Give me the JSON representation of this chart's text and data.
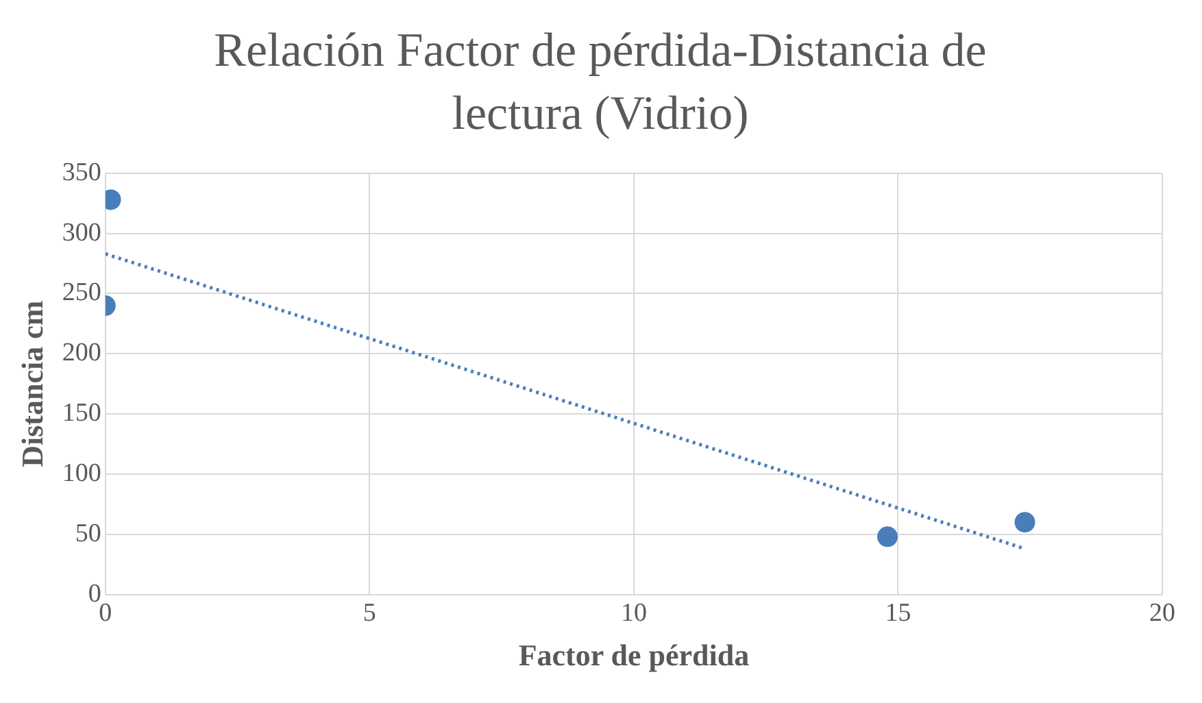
{
  "chart_data": {
    "type": "scatter",
    "title": "Relación Factor de pérdida-Distancia de lectura (Vidrio)",
    "xlabel": "Factor de pérdida",
    "ylabel": "Distancia cm",
    "xlim": [
      0,
      20
    ],
    "xticks": [
      0,
      5,
      10,
      15,
      20
    ],
    "ylim": [
      0,
      350
    ],
    "yticks": [
      0,
      50,
      100,
      150,
      200,
      250,
      300,
      350
    ],
    "grid": true,
    "series": [
      {
        "type": "scatter",
        "x": [
          0,
          0.1,
          14.8,
          17.4
        ],
        "values": [
          240,
          328,
          48,
          60
        ],
        "color": "#4a7ebb",
        "marker": "circle"
      },
      {
        "type": "line",
        "x": [
          0,
          17.4
        ],
        "values": [
          283,
          38
        ],
        "color": "#4a7ebb",
        "line_style": "dotted",
        "marker": "none"
      }
    ]
  }
}
